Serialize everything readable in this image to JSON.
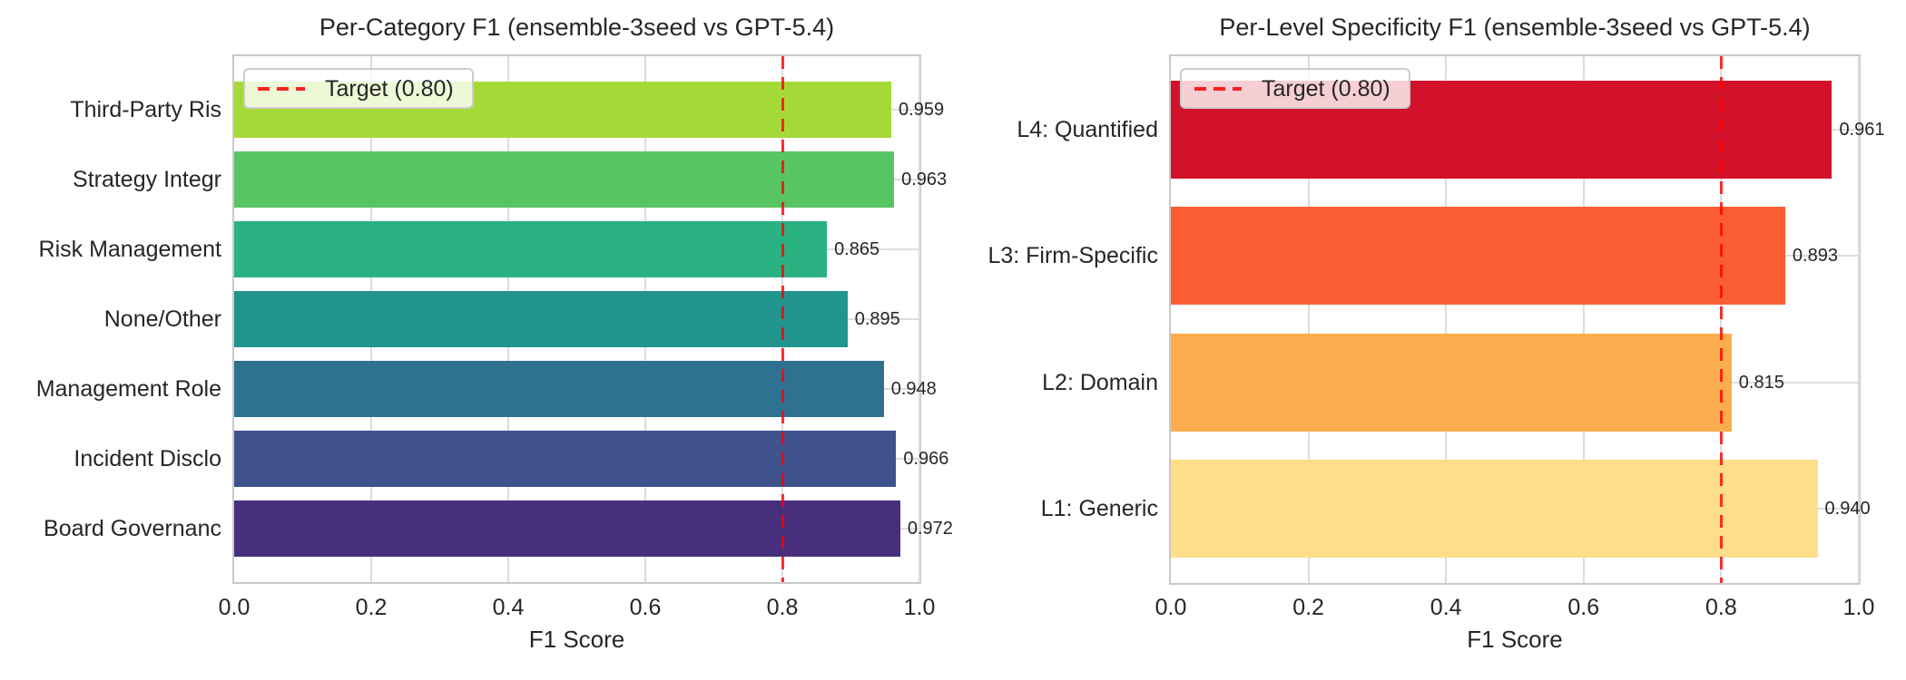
{
  "styles": {
    "background": "#ffffff",
    "text_color": "#262626",
    "grid_color": "#dcdcdc",
    "spine_color": "#c9c9c9",
    "target_color": "#ff0000",
    "legend_bg": "rgba(255,255,255,0.8)",
    "legend_border": "#cccccc"
  },
  "chart_data": [
    {
      "type": "bar",
      "orientation": "horizontal",
      "title": "Per-Category F1 (ensemble-3seed vs GPT-5.4)",
      "categories": [
        "Third-Party Ris",
        "Strategy Integr",
        "Risk Management",
        "None/Other",
        "Management Role",
        "Incident Disclo",
        "Board Governanc"
      ],
      "values": [
        0.959,
        0.963,
        0.865,
        0.895,
        0.948,
        0.966,
        0.972
      ],
      "value_labels": [
        "0.959",
        "0.963",
        "0.865",
        "0.895",
        "0.948",
        "0.966",
        "0.972"
      ],
      "bar_colors": [
        "#a5d938",
        "#58c563",
        "#2ab181",
        "#21948d",
        "#2e7190",
        "#3f528c",
        "#472f7d"
      ],
      "xlabel": "F1 Score",
      "xlim": [
        0.0,
        1.0
      ],
      "xticks": [
        "0.0",
        "0.2",
        "0.4",
        "0.6",
        "0.8",
        "1.0"
      ],
      "xtick_values": [
        0.0,
        0.2,
        0.4,
        0.6,
        0.8,
        1.0
      ],
      "grid": true,
      "legend": {
        "label": "Target (0.80)",
        "position": "upper left",
        "line_style": "dashed",
        "line_color": "#ff0000"
      },
      "target_line": {
        "value": 0.8,
        "style": "dashed",
        "color": "#ff0000"
      }
    },
    {
      "type": "bar",
      "orientation": "horizontal",
      "title": "Per-Level Specificity F1 (ensemble-3seed vs GPT-5.4)",
      "categories": [
        "L4: Quantified",
        "L3: Firm-Specific",
        "L2: Domain",
        "L1: Generic"
      ],
      "values": [
        0.961,
        0.893,
        0.815,
        0.94
      ],
      "value_labels": [
        "0.961",
        "0.893",
        "0.815",
        "0.940"
      ],
      "bar_colors": [
        "#d2122b",
        "#fb5d33",
        "#fbac4d",
        "#fedd8b"
      ],
      "xlabel": "F1 Score",
      "xlim": [
        0.0,
        1.0
      ],
      "xticks": [
        "0.0",
        "0.2",
        "0.4",
        "0.6",
        "0.8",
        "1.0"
      ],
      "xtick_values": [
        0.0,
        0.2,
        0.4,
        0.6,
        0.8,
        1.0
      ],
      "grid": true,
      "legend": {
        "label": "Target (0.80)",
        "position": "upper left",
        "line_style": "dashed",
        "line_color": "#ff0000"
      },
      "target_line": {
        "value": 0.8,
        "style": "dashed",
        "color": "#ff0000"
      }
    }
  ]
}
